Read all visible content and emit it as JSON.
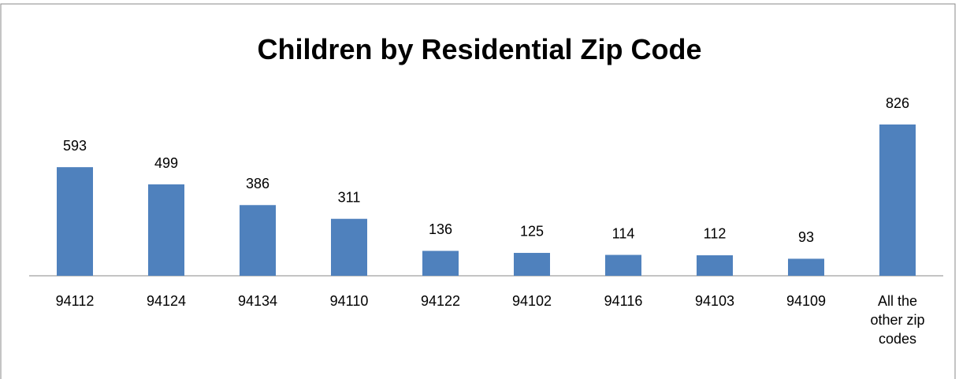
{
  "chart_data": {
    "type": "bar",
    "title": "Children by Residential Zip Code",
    "categories": [
      "94112",
      "94124",
      "94134",
      "94110",
      "94122",
      "94102",
      "94116",
      "94103",
      "94109",
      "All the other zip codes"
    ],
    "values": [
      593,
      499,
      386,
      311,
      136,
      125,
      114,
      112,
      93,
      826
    ],
    "color": "#4f81bd"
  }
}
